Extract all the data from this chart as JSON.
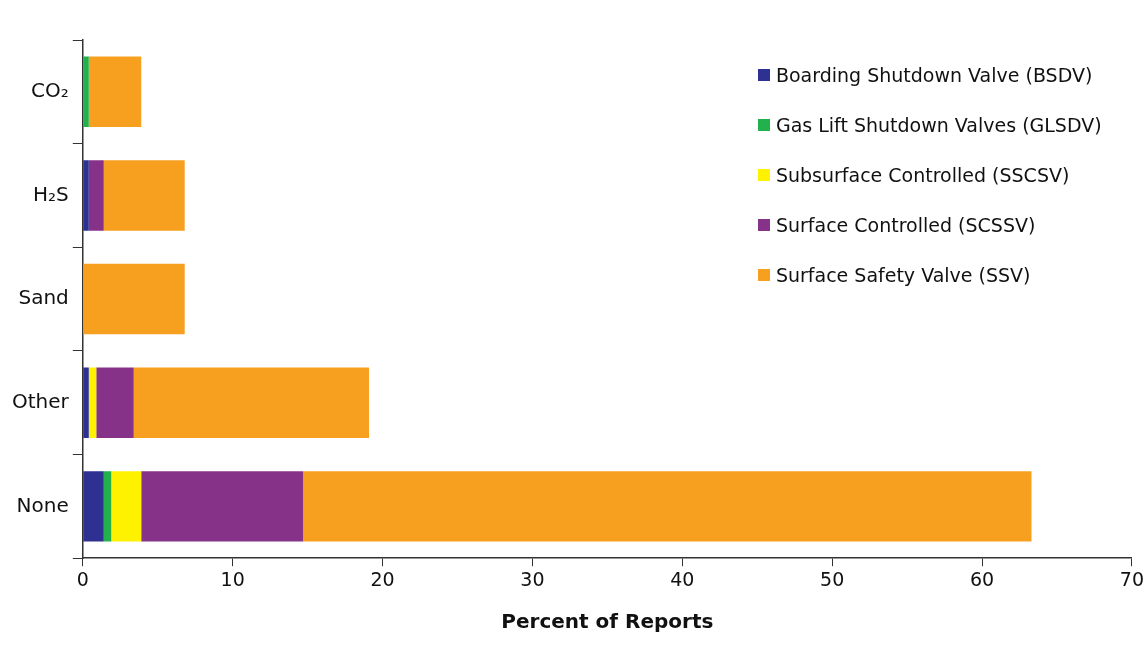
{
  "chart_data": {
    "type": "bar",
    "orientation": "horizontal",
    "stacked": true,
    "xlabel": "Percent of Reports",
    "categories": [
      "CO₂",
      "H₂S",
      "Sand",
      "Other",
      "None"
    ],
    "series": [
      {
        "name": "Boarding Shutdown Valve (BSDV)",
        "color": "#2e3192",
        "values": [
          null,
          0.4,
          null,
          0.4,
          1.4
        ]
      },
      {
        "name": "Gas Lift Shutdown Valves (GLSDV)",
        "color": "#22b14c",
        "values": [
          0.4,
          null,
          null,
          null,
          0.5
        ]
      },
      {
        "name": "Subsurface Controlled (SSCSV)",
        "color": "#fff200",
        "values": [
          null,
          null,
          null,
          0.5,
          2.0
        ]
      },
      {
        "name": "Surface Controlled (SCSSV)",
        "color": "#873289",
        "values": [
          null,
          1.0,
          null,
          2.5,
          10.8
        ]
      },
      {
        "name": "Surface Safety Valve (SSV)",
        "color": "#f7a01f",
        "values": [
          3.5,
          5.4,
          6.8,
          15.7,
          48.6
        ]
      }
    ],
    "xlim": [
      0,
      70
    ],
    "xticks": [
      0,
      10,
      20,
      30,
      40,
      50,
      60,
      70
    ],
    "grid": false,
    "legend": "top right"
  }
}
